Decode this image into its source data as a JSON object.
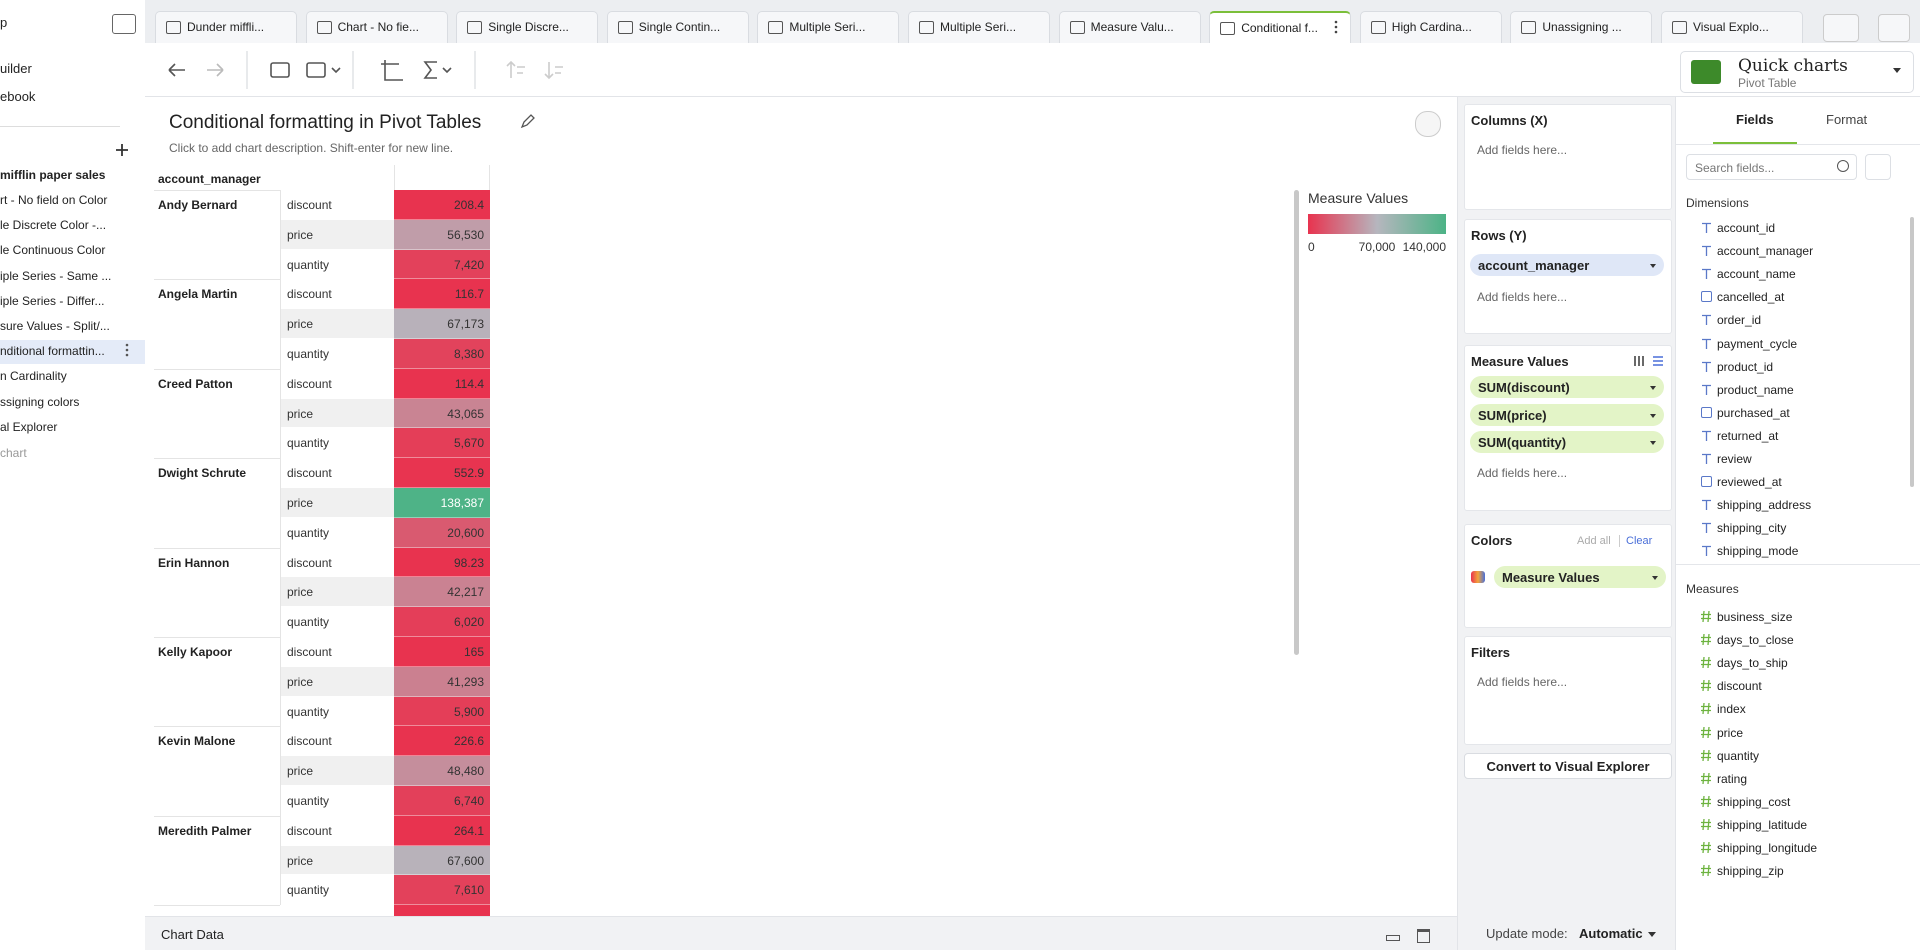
{
  "sidebar": {
    "top": "p",
    "links": [
      "uilder",
      "ebook"
    ],
    "folder": "mifflin paper sales",
    "items": [
      "rt - No field on Color",
      "le Discrete Color -...",
      "le Continuous Color",
      "iple Series - Same ...",
      "iple Series - Differ...",
      "sure Values - Split/...",
      "nditional formattin...",
      "n Cardinality",
      "ssigning colors",
      "al Explorer"
    ],
    "new_chart": "chart"
  },
  "tabs": [
    "Dunder miffli...",
    "Chart - No fie...",
    "Single Discre...",
    "Single Contin...",
    "Multiple Seri...",
    "Multiple Seri...",
    "Measure Valu...",
    "Conditional f...",
    "High Cardina...",
    "Unassigning ...",
    "Visual Explo..."
  ],
  "chart_picker": {
    "title": "Quick charts",
    "subtitle": "Pivot Table"
  },
  "header": {
    "title": "Conditional formatting in Pivot Tables",
    "description": "Click to add chart description. Shift-enter for new line."
  },
  "table": {
    "header": "account_manager",
    "measures": [
      "discount",
      "price",
      "quantity"
    ],
    "rows": [
      {
        "name": "Andy Bernard",
        "values": [
          {
            "value": 208.4,
            "label": "208.4"
          },
          {
            "value": 56530,
            "label": "56,530"
          },
          {
            "value": 7420,
            "label": "7,420"
          }
        ]
      },
      {
        "name": "Angela Martin",
        "values": [
          {
            "value": 116.7,
            "label": "116.7"
          },
          {
            "value": 67173,
            "label": "67,173"
          },
          {
            "value": 8380,
            "label": "8,380"
          }
        ]
      },
      {
        "name": "Creed Patton",
        "values": [
          {
            "value": 114.4,
            "label": "114.4"
          },
          {
            "value": 43065,
            "label": "43,065"
          },
          {
            "value": 5670,
            "label": "5,670"
          }
        ]
      },
      {
        "name": "Dwight Schrute",
        "values": [
          {
            "value": 552.9,
            "label": "552.9"
          },
          {
            "value": 138387,
            "label": "138,387"
          },
          {
            "value": 20600,
            "label": "20,600"
          }
        ]
      },
      {
        "name": "Erin Hannon",
        "values": [
          {
            "value": 98.23,
            "label": "98.23"
          },
          {
            "value": 42217,
            "label": "42,217"
          },
          {
            "value": 6020,
            "label": "6,020"
          }
        ]
      },
      {
        "name": "Kelly Kapoor",
        "values": [
          {
            "value": 165,
            "label": "165"
          },
          {
            "value": 41293,
            "label": "41,293"
          },
          {
            "value": 5900,
            "label": "5,900"
          }
        ]
      },
      {
        "name": "Kevin Malone",
        "values": [
          {
            "value": 226.6,
            "label": "226.6"
          },
          {
            "value": 48480,
            "label": "48,480"
          },
          {
            "value": 6740,
            "label": "6,740"
          }
        ]
      },
      {
        "name": "Meredith Palmer",
        "values": [
          {
            "value": 264.1,
            "label": "264.1"
          },
          {
            "value": 67600,
            "label": "67,600"
          },
          {
            "value": 7610,
            "label": "7,610"
          }
        ]
      }
    ]
  },
  "legend": {
    "title": "Measure Values",
    "colors": [
      "#e8334f",
      "#b6b6be",
      "#4cb386"
    ],
    "ticks": [
      {
        "value": 0,
        "label": "0"
      },
      {
        "value": 70000,
        "label": "70,000"
      },
      {
        "value": 140000,
        "label": "140,000"
      }
    ]
  },
  "shelves": {
    "columns": {
      "title": "Columns (X)",
      "placeholder": "Add fields here..."
    },
    "rows": {
      "title": "Rows (Y)",
      "pills": [
        "account_manager"
      ],
      "placeholder": "Add fields here..."
    },
    "measures": {
      "title": "Measure Values",
      "pills": [
        "SUM(discount)",
        "SUM(price)",
        "SUM(quantity)"
      ],
      "placeholder": "Add fields here..."
    },
    "colors": {
      "title": "Colors",
      "add_all": "Add all",
      "clear": "Clear",
      "pills": [
        "Measure Values"
      ]
    },
    "filters": {
      "title": "Filters",
      "placeholder": "Add fields here..."
    },
    "convert": "Convert to Visual Explorer",
    "update_label": "Update mode:",
    "update_value": "Automatic"
  },
  "fields": {
    "tabs": [
      "Fields",
      "Format"
    ],
    "search": "Search fields...",
    "dimensions_title": "Dimensions",
    "dimensions": [
      "account_id",
      "account_manager",
      "account_name",
      "cancelled_at",
      "order_id",
      "payment_cycle",
      "product_id",
      "product_name",
      "purchased_at",
      "returned_at",
      "review",
      "reviewed_at",
      "shipping_address",
      "shipping_city",
      "shipping_mode"
    ],
    "measures_title": "Measures",
    "measures": [
      "business_size",
      "days_to_close",
      "days_to_ship",
      "discount",
      "index",
      "price",
      "quantity",
      "rating",
      "shipping_cost",
      "shipping_latitude",
      "shipping_longitude",
      "shipping_zip"
    ]
  },
  "footer": {
    "title": "Chart Data"
  }
}
